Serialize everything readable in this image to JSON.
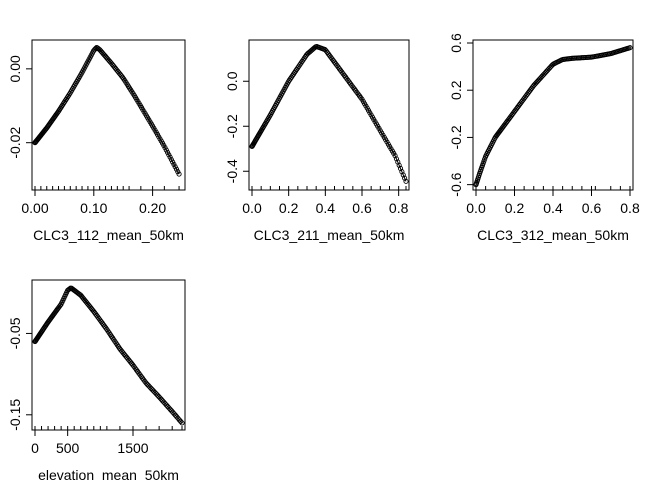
{
  "chart_data": [
    {
      "type": "scatter",
      "xlabel": "CLC3_112_mean_50km",
      "ylabel": "",
      "xlim": [
        0,
        0.25
      ],
      "ylim": [
        -0.032,
        0.007
      ],
      "xticks": [
        0.0,
        0.1,
        0.2
      ],
      "xtick_labels": [
        "0.00",
        "0.10",
        "0.20"
      ],
      "yticks": [
        -0.02,
        0.0
      ],
      "ytick_labels": [
        "-0.02",
        "0.00"
      ],
      "grid": false,
      "series": [
        {
          "x": [
            0.0,
            0.02,
            0.04,
            0.06,
            0.08,
            0.1,
            0.105,
            0.11,
            0.13,
            0.15,
            0.17,
            0.2,
            0.22,
            0.245
          ],
          "y": [
            -0.02,
            -0.016,
            -0.0115,
            -0.0065,
            -0.001,
            0.005,
            0.0058,
            0.0052,
            0.0015,
            -0.0025,
            -0.0075,
            -0.0155,
            -0.021,
            -0.0285
          ]
        }
      ],
      "rug": [
        0.0,
        0.01,
        0.02,
        0.03,
        0.04,
        0.05,
        0.06,
        0.07,
        0.08,
        0.09,
        0.1,
        0.11,
        0.12,
        0.13,
        0.14,
        0.15,
        0.16,
        0.18,
        0.2,
        0.22,
        0.245
      ]
    },
    {
      "type": "scatter",
      "xlabel": "CLC3_211_mean_50km",
      "ylabel": "",
      "xlim": [
        0,
        0.84
      ],
      "ylim": [
        -0.47,
        0.17
      ],
      "xticks": [
        0.0,
        0.2,
        0.4,
        0.6,
        0.8
      ],
      "xtick_labels": [
        "0.0",
        "0.2",
        "0.4",
        "0.6",
        "0.8"
      ],
      "yticks": [
        -0.4,
        -0.2,
        0.0
      ],
      "ytick_labels": [
        "-0.4",
        "-0.2",
        "0.0"
      ],
      "grid": false,
      "series": [
        {
          "x": [
            0.0,
            0.1,
            0.2,
            0.3,
            0.35,
            0.4,
            0.5,
            0.6,
            0.7,
            0.78,
            0.84
          ],
          "y": [
            -0.29,
            -0.15,
            0.0,
            0.12,
            0.155,
            0.14,
            0.03,
            -0.08,
            -0.22,
            -0.33,
            -0.445
          ]
        }
      ],
      "rug": [
        0.0,
        0.05,
        0.1,
        0.15,
        0.2,
        0.25,
        0.3,
        0.35,
        0.4,
        0.45,
        0.5,
        0.55,
        0.6,
        0.65,
        0.7,
        0.75,
        0.8,
        0.84
      ]
    },
    {
      "type": "scatter",
      "xlabel": "CLC3_312_mean_50km",
      "ylabel": "",
      "xlim": [
        0,
        0.8
      ],
      "ylim": [
        -0.62,
        0.6
      ],
      "xticks": [
        0.0,
        0.2,
        0.4,
        0.6,
        0.8
      ],
      "xtick_labels": [
        "0.0",
        "0.2",
        "0.4",
        "0.6",
        "0.8"
      ],
      "yticks": [
        -0.6,
        -0.2,
        0.2,
        0.6
      ],
      "ytick_labels": [
        "-0.6",
        "-0.2",
        "0.2",
        "0.6"
      ],
      "grid": false,
      "series": [
        {
          "x": [
            0.0,
            0.02,
            0.05,
            0.1,
            0.2,
            0.3,
            0.4,
            0.45,
            0.5,
            0.6,
            0.7,
            0.8
          ],
          "y": [
            -0.6,
            -0.5,
            -0.36,
            -0.2,
            0.02,
            0.24,
            0.42,
            0.46,
            0.47,
            0.48,
            0.51,
            0.56
          ]
        }
      ],
      "rug": [
        0.0,
        0.05,
        0.1,
        0.15,
        0.2,
        0.25,
        0.3,
        0.35,
        0.4,
        0.45,
        0.5,
        0.55,
        0.6,
        0.62,
        0.7,
        0.75,
        0.8
      ]
    },
    {
      "type": "scatter",
      "xlabel": "elevation_mean_50km",
      "ylabel": "",
      "xlim": [
        0,
        2250
      ],
      "ylim": [
        -0.165,
        0.012
      ],
      "xticks": [
        0,
        500,
        1500
      ],
      "xtick_labels": [
        "0",
        "500",
        "1500"
      ],
      "yticks": [
        -0.15,
        -0.05
      ],
      "ytick_labels": [
        "-0.15",
        "-0.05"
      ],
      "grid": false,
      "series": [
        {
          "x": [
            0,
            200,
            400,
            500,
            550,
            700,
            900,
            1100,
            1300,
            1500,
            1700,
            1900,
            2100,
            2250
          ],
          "y": [
            -0.06,
            -0.036,
            -0.014,
            0.003,
            0.006,
            -0.003,
            -0.023,
            -0.045,
            -0.069,
            -0.089,
            -0.111,
            -0.128,
            -0.146,
            -0.16
          ]
        }
      ],
      "rug": [
        0,
        100,
        200,
        300,
        400,
        500,
        600,
        700,
        800,
        900,
        1000,
        1100,
        1300,
        1500,
        1700,
        1900,
        2100,
        2250
      ]
    }
  ]
}
